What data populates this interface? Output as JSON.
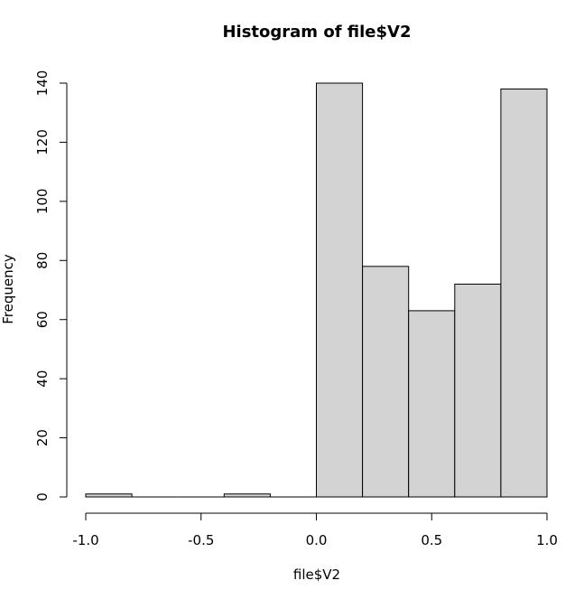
{
  "chart_data": {
    "type": "bar",
    "title": "Histogram of file$V2",
    "xlabel": "file$V2",
    "ylabel": "Frequency",
    "bins": [
      {
        "from": -1.0,
        "to": -0.8,
        "count": 1
      },
      {
        "from": -0.8,
        "to": -0.6,
        "count": 0
      },
      {
        "from": -0.6,
        "to": -0.4,
        "count": 0
      },
      {
        "from": -0.4,
        "to": -0.2,
        "count": 1
      },
      {
        "from": -0.2,
        "to": 0.0,
        "count": 0
      },
      {
        "from": 0.0,
        "to": 0.2,
        "count": 140
      },
      {
        "from": 0.2,
        "to": 0.4,
        "count": 78
      },
      {
        "from": 0.4,
        "to": 0.6,
        "count": 63
      },
      {
        "from": 0.6,
        "to": 0.8,
        "count": 72
      },
      {
        "from": 0.8,
        "to": 1.0,
        "count": 138
      }
    ],
    "xlim": [
      -1.0,
      1.0
    ],
    "ylim": [
      0,
      140
    ],
    "xticks": [
      -1.0,
      -0.5,
      0.0,
      0.5,
      1.0
    ],
    "xtick_labels": [
      "-1.0",
      "-0.5",
      "0.0",
      "0.5",
      "1.0"
    ],
    "yticks": [
      0,
      20,
      40,
      60,
      80,
      100,
      120,
      140
    ],
    "ytick_labels": [
      "0",
      "20",
      "40",
      "60",
      "80",
      "100",
      "120",
      "140"
    ],
    "bar_fill": "#d3d3d3",
    "bar_stroke": "#000000",
    "grid": false
  }
}
